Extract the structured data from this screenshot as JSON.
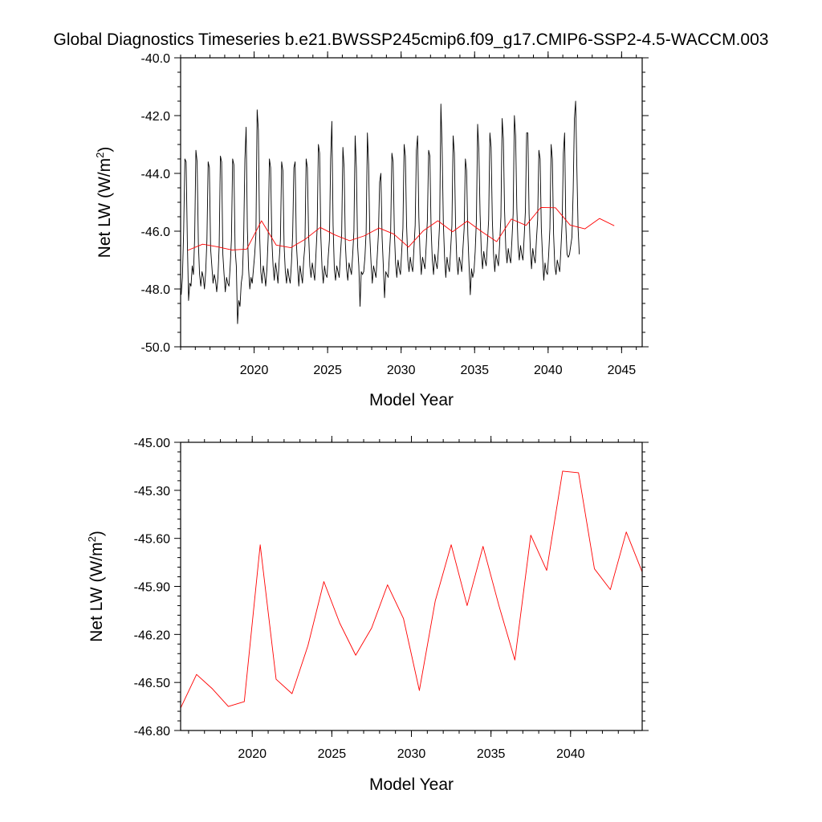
{
  "title": "Global Diagnostics Timeseries b.e21.BWSSP245cmip6.f09_g17.CMIP6-SSP2-4.5-WACCM.003",
  "chart_data": [
    {
      "type": "line",
      "xlabel": "Model Year",
      "ylabel_main": "Net LW (W/m",
      "ylabel_sup": "2",
      "ylabel_close": ")",
      "xlim": [
        2015,
        2046.4
      ],
      "ylim": [
        -50,
        -40
      ],
      "xticks": [
        2020,
        2025,
        2030,
        2035,
        2040,
        2045
      ],
      "xtick_labels": [
        "2020",
        "2025",
        "2030",
        "2035",
        "2040",
        "2045"
      ],
      "yticks": [
        -50,
        -48,
        -46,
        -44,
        -42,
        -40
      ],
      "ytick_labels": [
        "-50.0",
        "-48.0",
        "-46.0",
        "-44.0",
        "-42.0",
        "-40.0"
      ],
      "series": [
        {
          "name": "monthly",
          "color": "#000000",
          "t0": 2015.04,
          "step": 0.08333,
          "values": [
            -48.2,
            -47.6,
            -46.0,
            -43.5,
            -43.6,
            -46.3,
            -48.4,
            -47.8,
            -47.9,
            -47.2,
            -47.5,
            -46.2,
            -43.2,
            -43.6,
            -46.4,
            -47.5,
            -47.9,
            -47.4,
            -47.6,
            -48.0,
            -47.4,
            -46.3,
            -43.6,
            -43.8,
            -46.6,
            -47.2,
            -47.8,
            -47.5,
            -47.7,
            -48.1,
            -47.6,
            -46.5,
            -43.4,
            -43.6,
            -46.8,
            -47.5,
            -48.1,
            -47.6,
            -47.8,
            -47.9,
            -47.2,
            -46.3,
            -43.5,
            -43.7,
            -46.6,
            -47.2,
            -49.2,
            -48.4,
            -48.6,
            -47.8,
            -47.5,
            -46.2,
            -43.5,
            -42.4,
            -45.9,
            -47.3,
            -48.0,
            -47.6,
            -47.8,
            -47.3,
            -46.8,
            -46.1,
            -41.8,
            -42.5,
            -46.1,
            -47.4,
            -47.8,
            -47.2,
            -47.5,
            -47.9,
            -47.3,
            -46.2,
            -43.5,
            -43.8,
            -46.3,
            -47.2,
            -47.7,
            -47.1,
            -47.4,
            -47.8,
            -47.0,
            -46.3,
            -43.6,
            -43.9,
            -46.5,
            -47.4,
            -47.8,
            -47.3,
            -47.6,
            -47.8,
            -47.1,
            -46.1,
            -43.8,
            -43.6,
            -46.4,
            -47.2,
            -47.9,
            -47.2,
            -47.5,
            -47.8,
            -47.0,
            -46.5,
            -43.5,
            -43.8,
            -46.1,
            -47.2,
            -47.6,
            -47.1,
            -47.4,
            -47.7,
            -46.8,
            -45.9,
            -43.0,
            -43.3,
            -46.2,
            -47.3,
            -47.8,
            -47.2,
            -47.5,
            -47.6,
            -46.9,
            -46.3,
            -43.5,
            -42.2,
            -45.8,
            -47.3,
            -47.7,
            -47.2,
            -47.4,
            -47.6,
            -46.8,
            -46.1,
            -43.1,
            -43.8,
            -46.4,
            -47.3,
            -47.7,
            -47.1,
            -47.3,
            -47.5,
            -46.8,
            -46.0,
            -42.7,
            -43.8,
            -46.5,
            -47.2,
            -48.6,
            -47.4,
            -47.5,
            -47.4,
            -46.9,
            -46.0,
            -42.6,
            -43.7,
            -46.2,
            -47.1,
            -47.8,
            -47.2,
            -47.4,
            -47.6,
            -46.9,
            -46.1,
            -44.3,
            -44.0,
            -46.2,
            -47.2,
            -48.3,
            -47.4,
            -47.5,
            -47.6,
            -46.8,
            -46.0,
            -43.3,
            -43.6,
            -46.0,
            -47.1,
            -47.6,
            -47.0,
            -47.3,
            -47.5,
            -46.7,
            -45.9,
            -43.0,
            -43.4,
            -45.8,
            -47.0,
            -47.4,
            -46.9,
            -47.2,
            -47.4,
            -46.6,
            -45.8,
            -43.2,
            -42.7,
            -45.5,
            -46.8,
            -47.5,
            -46.9,
            -47.1,
            -47.3,
            -46.5,
            -45.6,
            -43.2,
            -43.4,
            -45.9,
            -47.0,
            -47.5,
            -46.8,
            -47.1,
            -47.3,
            -46.6,
            -45.7,
            -41.6,
            -43.1,
            -45.7,
            -46.9,
            -47.6,
            -46.9,
            -47.2,
            -47.4,
            -46.6,
            -45.8,
            -42.7,
            -43.3,
            -45.8,
            -47.0,
            -47.5,
            -46.9,
            -47.1,
            -47.4,
            -46.6,
            -45.9,
            -43.5,
            -43.9,
            -46.1,
            -47.2,
            -48.2,
            -47.3,
            -47.6,
            -47.4,
            -46.7,
            -45.6,
            -42.3,
            -43.2,
            -45.4,
            -46.7,
            -47.3,
            -46.7,
            -47.0,
            -47.2,
            -46.4,
            -45.6,
            -42.6,
            -43.1,
            -45.6,
            -46.8,
            -47.4,
            -46.8,
            -47.0,
            -47.2,
            -46.4,
            -45.5,
            -42.1,
            -42.8,
            -45.3,
            -46.6,
            -47.1,
            -46.6,
            -46.9,
            -47.1,
            -46.3,
            -45.4,
            -42.0,
            -42.7,
            -45.2,
            -46.5,
            -47.0,
            -46.5,
            -46.8,
            -47.0,
            -46.2,
            -45.3,
            -42.6,
            -42.6,
            -45.4,
            -46.6,
            -47.3,
            -46.6,
            -46.9,
            -47.1,
            -46.3,
            -45.6,
            -43.2,
            -43.5,
            -45.9,
            -46.9,
            -47.7,
            -47.1,
            -47.4,
            -47.5,
            -46.8,
            -45.9,
            -43.0,
            -43.5,
            -46.1,
            -47.2,
            -47.5,
            -47.0,
            -47.2,
            -47.4,
            -46.6,
            -45.7,
            -43.3,
            -42.6,
            -45.8,
            -46.8,
            -46.9,
            -46.8,
            -46.5,
            -46.2,
            -44.6,
            -42.1,
            -41.5,
            -43.8,
            -45.9,
            -46.8
          ]
        },
        {
          "name": "annual",
          "color": "#ff0000",
          "x": [
            2015.5,
            2016.5,
            2017.5,
            2018.5,
            2019.5,
            2020.5,
            2021.5,
            2022.5,
            2023.5,
            2024.5,
            2025.5,
            2026.5,
            2027.5,
            2028.5,
            2029.5,
            2030.5,
            2031.5,
            2032.5,
            2033.5,
            2034.5,
            2035.5,
            2036.5,
            2037.5,
            2038.5,
            2039.5,
            2040.5,
            2041.5,
            2042.5,
            2043.5,
            2044.5
          ],
          "values": [
            -46.66,
            -46.45,
            -46.54,
            -46.65,
            -46.62,
            -45.64,
            -46.48,
            -46.57,
            -46.27,
            -45.87,
            -46.13,
            -46.33,
            -46.16,
            -45.89,
            -46.1,
            -46.55,
            -45.99,
            -45.64,
            -46.02,
            -45.65,
            -46.02,
            -46.36,
            -45.58,
            -45.8,
            -45.18,
            -45.19,
            -45.79,
            -45.92,
            -45.56,
            -45.81
          ]
        }
      ]
    },
    {
      "type": "line",
      "xlabel": "Model Year",
      "ylabel_main": "Net LW (W/m",
      "ylabel_sup": "2",
      "ylabel_close": ")",
      "xlim": [
        2015.5,
        2044.5
      ],
      "ylim": [
        -46.8,
        -45.0
      ],
      "xticks": [
        2020,
        2025,
        2030,
        2035,
        2040
      ],
      "xtick_labels": [
        "2020",
        "2025",
        "2030",
        "2035",
        "2040"
      ],
      "yticks": [
        -46.8,
        -46.5,
        -46.2,
        -45.9,
        -45.6,
        -45.3,
        -45.0
      ],
      "ytick_labels": [
        "-46.80",
        "-46.50",
        "-46.20",
        "-45.90",
        "-45.60",
        "-45.30",
        "-45.00"
      ],
      "series": [
        {
          "name": "annual",
          "color": "#ff0000",
          "x": [
            2015.5,
            2016.5,
            2017.5,
            2018.5,
            2019.5,
            2020.5,
            2021.5,
            2022.5,
            2023.5,
            2024.5,
            2025.5,
            2026.5,
            2027.5,
            2028.5,
            2029.5,
            2030.5,
            2031.5,
            2032.5,
            2033.5,
            2034.5,
            2035.5,
            2036.5,
            2037.5,
            2038.5,
            2039.5,
            2040.5,
            2041.5,
            2042.5,
            2043.5,
            2044.5
          ],
          "values": [
            -46.66,
            -46.45,
            -46.54,
            -46.65,
            -46.62,
            -45.64,
            -46.48,
            -46.57,
            -46.27,
            -45.87,
            -46.13,
            -46.33,
            -46.16,
            -45.89,
            -46.1,
            -46.55,
            -45.99,
            -45.64,
            -46.02,
            -45.65,
            -46.02,
            -46.36,
            -45.58,
            -45.8,
            -45.18,
            -45.19,
            -45.79,
            -45.92,
            -45.56,
            -45.81
          ]
        }
      ]
    }
  ]
}
